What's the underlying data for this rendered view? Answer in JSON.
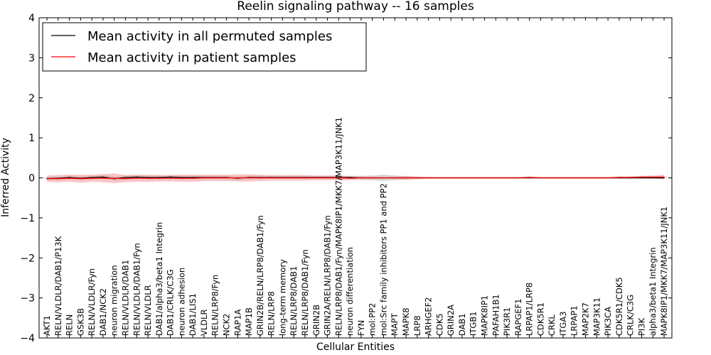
{
  "chart_data": {
    "type": "line",
    "title": "Reelin signaling pathway -- 16 samples",
    "xlabel": "Cellular Entities",
    "ylabel": "Inferred Activity",
    "ylim": [
      -4,
      4
    ],
    "yticks": [
      4,
      3,
      2,
      1,
      0,
      -1,
      -2,
      -3,
      -4
    ],
    "ytick_labels": [
      "4",
      "3",
      "2",
      "1",
      "0",
      "−1",
      "−2",
      "−3",
      "−4"
    ],
    "grid": false,
    "legend_position": "top-left",
    "categories": [
      "AKT1",
      "RELN/VLDLR/DAB1/P13K",
      "RELN",
      "GSK3B",
      "RELN/VLDLR/Fyn",
      "DAB1/NCK2",
      "neuron migration",
      "RELN/VLDLR/DAB1",
      "RELN/VLDLR/DAB1/Fyn",
      "RELN/VLDLR",
      "DAB1/alpha3/beta1 Integrin",
      "DAB1/CRLK/C3G",
      "neuron adhesion",
      "DAB1/LIS1",
      "VLDLR",
      "RELN/LRP8/Fyn",
      "NCK2",
      "RAP1A",
      "MAP1B",
      "GRIN2B/RELN/LRP8/DAB1/Fyn",
      "RELN/LRP8",
      "long-term memory",
      "RELN/LRP8/DAB1",
      "RELN/LRP8/DAB1/Fyn",
      "GRIN2B",
      "GRIN2A/RELN/LRP8/DAB1/Fyn",
      "RELN/LRP8/DAB1/Fyn/MAPK8IP1/MKK7/MAP3K11/JNK1",
      "neuron differentiation",
      "FYN",
      "mol:PP2",
      "mol:Src family inhibitors PP1 and PP2",
      "MAPT",
      "MAPK8",
      "LRP8",
      "ARHGEF2",
      "CDK5",
      "GRIN2A",
      "DAB1",
      "ITGB1",
      "MAPK8IP1",
      "PAFAH1B1",
      "PIK3R1",
      "RAPGEF1",
      "LRPAP1/LRP8",
      "CDK5R1",
      "CRKL",
      "ITGA3",
      "LRPAP1",
      "MAP2K7",
      "MAP3K11",
      "PIK3CA",
      "CDK5R1/CDK5",
      "CRLK/C3G",
      "PI3K",
      "alpha3/beta1 Integrin",
      "MAPK8IP1/MKK7/MAP3K11/JNK1"
    ],
    "series": [
      {
        "name": "Mean activity in all permuted samples",
        "color": "#000000",
        "band_color": "#b8b8b8",
        "values": [
          -0.02,
          -0.01,
          0.01,
          -0.01,
          0.01,
          0.02,
          -0.02,
          0.01,
          0.02,
          0.01,
          0.01,
          0.02,
          0.01,
          0.01,
          0.01,
          0.01,
          0.01,
          -0.01,
          0.01,
          0.01,
          0.01,
          0.01,
          0.01,
          0.01,
          0.01,
          0.01,
          0.01,
          0.01,
          0.0,
          0.0,
          0.0,
          0.0,
          0.0,
          0.0,
          0.0,
          0.0,
          0.0,
          0.0,
          0.0,
          0.0,
          0.0,
          0.0,
          0.0,
          0.0,
          0.0,
          0.0,
          0.0,
          0.0,
          0.0,
          0.0,
          0.0,
          0.0,
          0.0,
          0.0,
          0.0,
          0.0
        ],
        "spread": [
          0.04,
          0.05,
          0.05,
          0.05,
          0.05,
          0.05,
          0.06,
          0.05,
          0.05,
          0.05,
          0.05,
          0.05,
          0.05,
          0.05,
          0.05,
          0.05,
          0.05,
          0.05,
          0.05,
          0.05,
          0.04,
          0.04,
          0.04,
          0.04,
          0.04,
          0.04,
          0.04,
          0.04,
          0.05,
          0.06,
          0.08,
          0.06,
          0.04,
          0.03,
          0.02,
          0.02,
          0.02,
          0.02,
          0.02,
          0.02,
          0.02,
          0.02,
          0.02,
          0.02,
          0.02,
          0.02,
          0.02,
          0.02,
          0.02,
          0.02,
          0.02,
          0.02,
          0.02,
          0.02,
          0.02,
          0.02
        ]
      },
      {
        "name": "Mean activity in patient samples",
        "color": "#ff0000",
        "band_color": "#f29a9a",
        "values": [
          -0.02,
          -0.02,
          -0.01,
          -0.02,
          -0.01,
          -0.01,
          -0.01,
          -0.02,
          -0.01,
          -0.01,
          -0.01,
          -0.01,
          -0.01,
          -0.01,
          0.0,
          0.0,
          0.0,
          0.0,
          0.0,
          0.0,
          0.0,
          0.0,
          0.0,
          0.0,
          0.0,
          0.0,
          0.0,
          -0.01,
          0.0,
          0.0,
          0.0,
          0.0,
          0.0,
          0.0,
          0.0,
          0.0,
          0.0,
          0.0,
          0.0,
          0.0,
          0.0,
          0.0,
          0.0,
          0.01,
          0.0,
          0.0,
          0.0,
          0.0,
          0.0,
          0.0,
          0.0,
          0.01,
          0.01,
          0.02,
          0.02,
          0.02
        ],
        "spread": [
          0.08,
          0.09,
          0.09,
          0.1,
          0.09,
          0.1,
          0.12,
          0.09,
          0.09,
          0.09,
          0.08,
          0.08,
          0.09,
          0.09,
          0.08,
          0.08,
          0.08,
          0.09,
          0.09,
          0.08,
          0.07,
          0.07,
          0.07,
          0.07,
          0.06,
          0.06,
          0.06,
          0.05,
          0.04,
          0.03,
          0.02,
          0.03,
          0.05,
          0.03,
          0.02,
          0.02,
          0.02,
          0.02,
          0.02,
          0.02,
          0.02,
          0.02,
          0.02,
          0.03,
          0.02,
          0.02,
          0.02,
          0.02,
          0.02,
          0.02,
          0.02,
          0.03,
          0.03,
          0.03,
          0.04,
          0.06
        ]
      }
    ]
  }
}
